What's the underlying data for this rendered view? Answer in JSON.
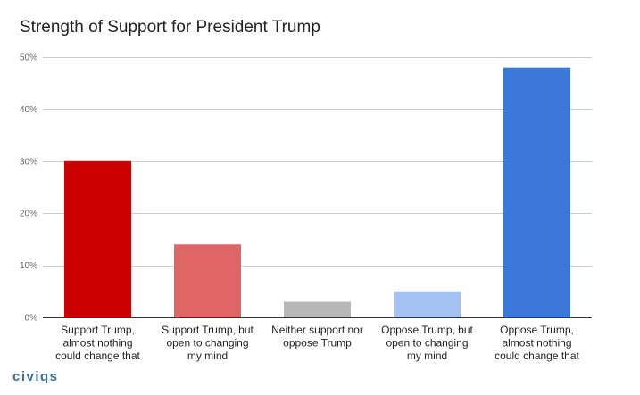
{
  "chart_data": {
    "type": "bar",
    "title": "Strength of Support for President Trump",
    "xlabel": "",
    "ylabel": "",
    "ylim": [
      0,
      50
    ],
    "yticks": [
      "0%",
      "10%",
      "20%",
      "30%",
      "40%",
      "50%"
    ],
    "ytick_values": [
      0,
      10,
      20,
      30,
      40,
      50
    ],
    "grid": true,
    "legend": "none",
    "categories": [
      [
        "Support Trump,",
        "almost nothing",
        "could change that"
      ],
      [
        "Support Trump, but",
        "open to changing",
        "my mind"
      ],
      [
        "Neither support nor",
        "oppose Trump"
      ],
      [
        "Oppose Trump, but",
        "open to changing",
        "my mind"
      ],
      [
        "Oppose Trump,",
        "almost nothing",
        "could change that"
      ]
    ],
    "values": [
      30,
      14,
      3,
      5,
      48
    ],
    "colors": [
      "#cc0000",
      "#e06666",
      "#b7b7b7",
      "#a4c2f4",
      "#3c78d8"
    ]
  },
  "brand": {
    "logo_text": "civiqs"
  }
}
